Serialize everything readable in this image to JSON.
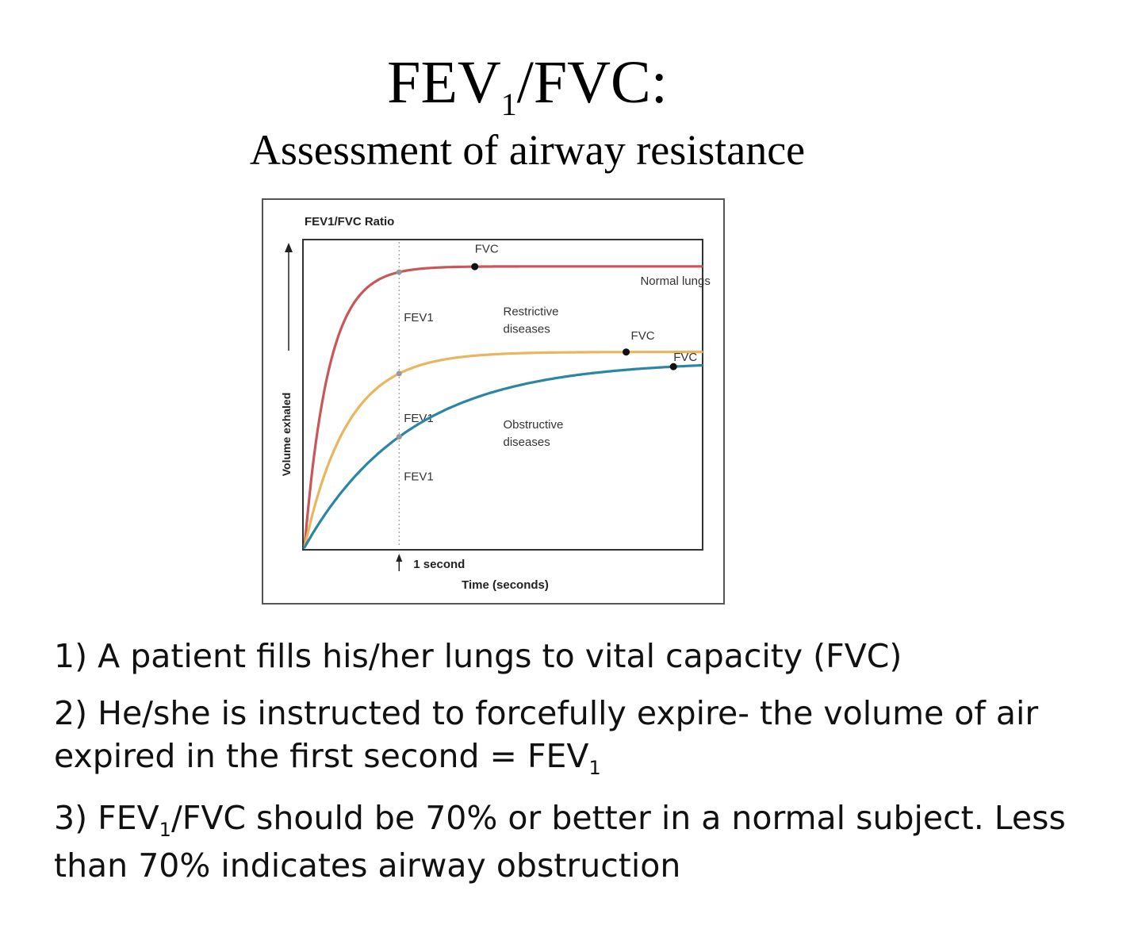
{
  "slide": {
    "title": {
      "main": "FEV",
      "sub": "1",
      "rest": "/FVC:"
    },
    "subtitle": "Assessment of airway resistance"
  },
  "chart_data": {
    "type": "line",
    "title": "FEV1/FVC Ratio",
    "xlabel": "Time (seconds)",
    "ylabel": "Volume exhaled",
    "marker_text": "1 second",
    "grid": false,
    "legend": "none",
    "colors": {
      "normal": "#c9575a",
      "restrictive": "#e8b65f",
      "obstructive": "#2a86a3"
    },
    "series": [
      {
        "label_lines": [
          "Normal lungs"
        ],
        "color_key": "normal",
        "plateau": 0.92,
        "rate": 3.9,
        "fev1_at": 1.0,
        "fvc_at": 1.8,
        "fev1_label": "FEV1",
        "fvc_label": "FVC"
      },
      {
        "label_lines": [
          "Restrictive",
          "diseases"
        ],
        "color_key": "restrictive",
        "plateau": 0.64,
        "rate": 2.2,
        "fev1_at": 1.0,
        "fvc_at": 3.4,
        "fev1_label": "FEV1",
        "fvc_label": "FVC"
      },
      {
        "label_lines": [
          "Obstructive",
          "diseases"
        ],
        "color_key": "obstructive",
        "plateau": 0.61,
        "rate": 0.9,
        "fev1_at": 1.0,
        "fvc_at": 3.9,
        "fev1_label": "FEV1",
        "fvc_label": "FVC"
      }
    ],
    "xlim": [
      0,
      4.2
    ],
    "ylim": [
      0,
      1
    ]
  },
  "steps": [
    {
      "text": "1) A patient fills his/her lungs to vital capacity (FVC)"
    },
    {
      "text": "2) He/she is instructed to forcefully expire- the volume of air expired in the first second = FEV",
      "sub": "1"
    },
    {
      "pre": "3) FEV",
      "sub": "1",
      "text": "/FVC should be 70% or better in a normal subject. Less than 70% indicates airway obstruction"
    }
  ]
}
